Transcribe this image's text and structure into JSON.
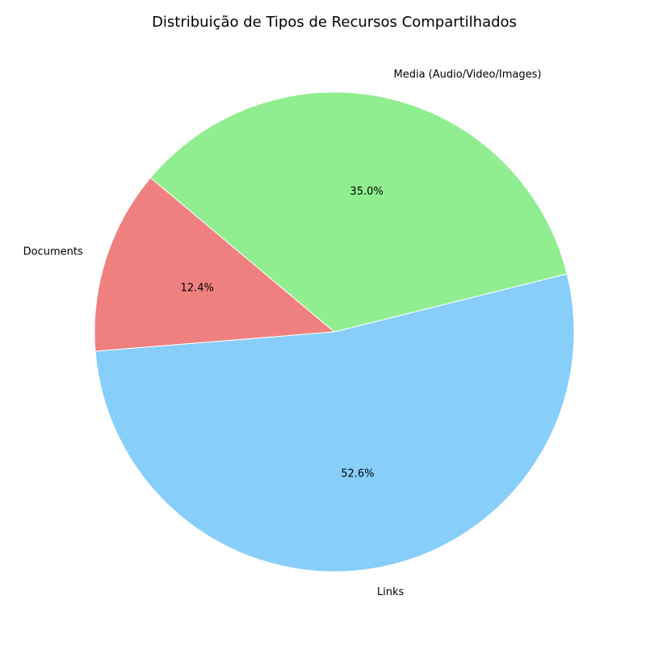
{
  "chart_data": {
    "type": "pie",
    "title": "Distribuição de Tipos de Recursos Compartilhados",
    "slices": [
      {
        "label": "Documents",
        "value": 12.4,
        "pct_label": "12.4%",
        "color": "#f08080"
      },
      {
        "label": "Links",
        "value": 52.6,
        "pct_label": "52.6%",
        "color": "#87cefa"
      },
      {
        "label": "Media (Audio/Video/Images)",
        "value": 35.0,
        "pct_label": "35.0%",
        "color": "#90ee90"
      }
    ],
    "start_angle_deg": 140,
    "direction": "counterclockwise"
  }
}
